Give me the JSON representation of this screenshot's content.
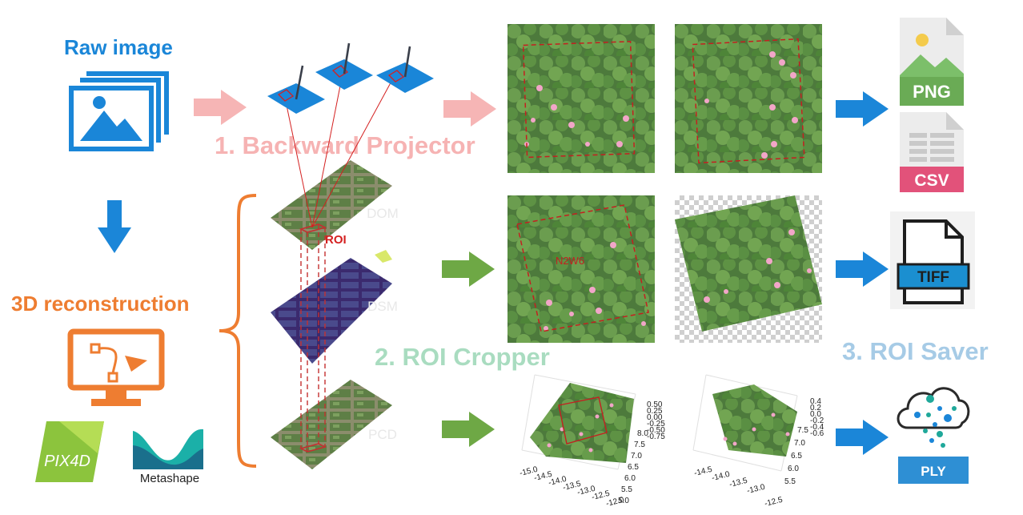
{
  "labels": {
    "raw_image": "Raw image",
    "reconstruction": "3D reconstruction",
    "backward_projector": "1. Backward Projector",
    "roi_cropper": "2. ROI Cropper",
    "roi_saver": "3. ROI Saver"
  },
  "layers": {
    "dom": "DOM",
    "dsm": "DSM",
    "pcd": "PCD",
    "roi": "ROI"
  },
  "roi_name": "N2W6",
  "software": {
    "pix4d": "PIX4D",
    "metashape": "Metashape"
  },
  "file_types": {
    "png": "PNG",
    "csv": "CSV",
    "tiff": "TIFF",
    "ply": "PLY"
  },
  "plot1": {
    "x_ticks": [
      "-15.0",
      "-14.5",
      "-14.0",
      "-13.5",
      "-13.0",
      "-12.5",
      "-12.0"
    ],
    "y_ticks": [
      "5.0",
      "5.5",
      "6.0",
      "6.5",
      "7.0",
      "7.5",
      "8.0"
    ],
    "z_ticks": [
      "0.50",
      "0.25",
      "0.00",
      "-0.25",
      "-0.50",
      "-0.75"
    ]
  },
  "plot2": {
    "x_ticks": [
      "-14.5",
      "-14.0",
      "-13.5",
      "-13.0",
      "-12.5"
    ],
    "y_ticks": [
      "5.5",
      "6.0",
      "6.5",
      "7.0",
      "7.5"
    ],
    "z_ticks": [
      "0.4",
      "0.2",
      "0.0",
      "-0.2",
      "-0.4",
      "-0.6"
    ]
  },
  "colors": {
    "raw_blue": "#1a86d8",
    "reconstruction_orange": "#ee7d31",
    "projector_pink": "#f6b3b3",
    "cropper_green": "#a9dcc0",
    "saver_blue": "#a6cbe6",
    "arrow_pink": "#f6b5b5",
    "arrow_green": "#6ea845",
    "arrow_blue": "#1b86d8",
    "roi_red": "#d42020"
  }
}
